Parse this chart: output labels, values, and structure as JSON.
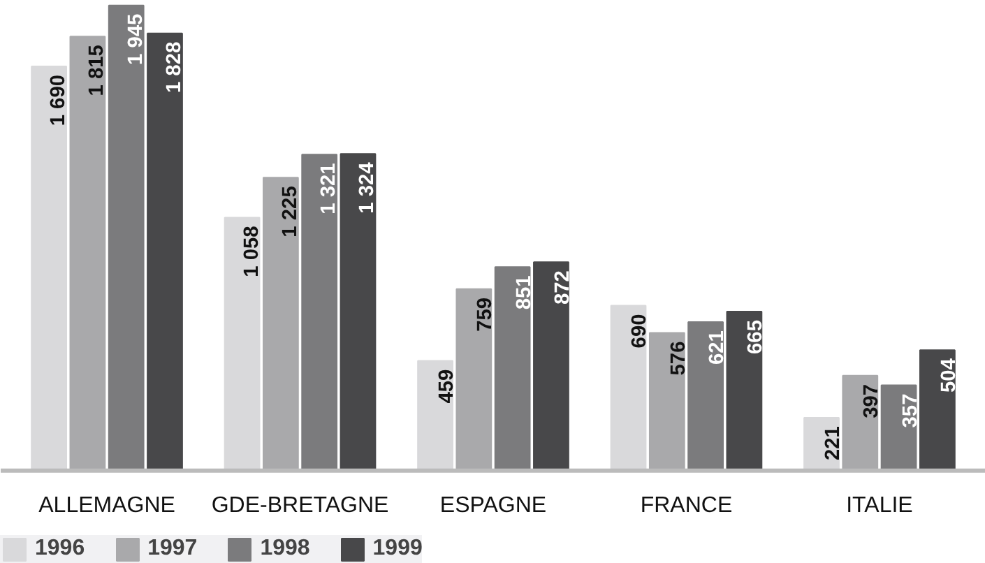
{
  "chart_data": {
    "type": "bar",
    "categories": [
      "ALLEMAGNE",
      "GDE-BRETAGNE",
      "ESPAGNE",
      "FRANCE",
      "ITALIE"
    ],
    "series": [
      {
        "name": "1996",
        "color": "#d9d9db",
        "values": [
          1690,
          1058,
          459,
          690,
          221
        ],
        "value_labels": [
          "1 690",
          "1 058",
          "459",
          "690",
          "221"
        ]
      },
      {
        "name": "1997",
        "color": "#a9a9ab",
        "values": [
          1815,
          1225,
          759,
          576,
          397
        ],
        "value_labels": [
          "1 815",
          "1 225",
          "759",
          "576",
          "397"
        ]
      },
      {
        "name": "1998",
        "color": "#7b7b7d",
        "values": [
          1945,
          1321,
          851,
          621,
          357
        ],
        "value_labels": [
          "1 945",
          "1 321",
          "851",
          "621",
          "357"
        ]
      },
      {
        "name": "1999",
        "color": "#48484a",
        "values": [
          1828,
          1324,
          872,
          665,
          504
        ],
        "value_labels": [
          "1 828",
          "1 324",
          "872",
          "665",
          "504"
        ]
      }
    ],
    "legend": "bottom left"
  }
}
